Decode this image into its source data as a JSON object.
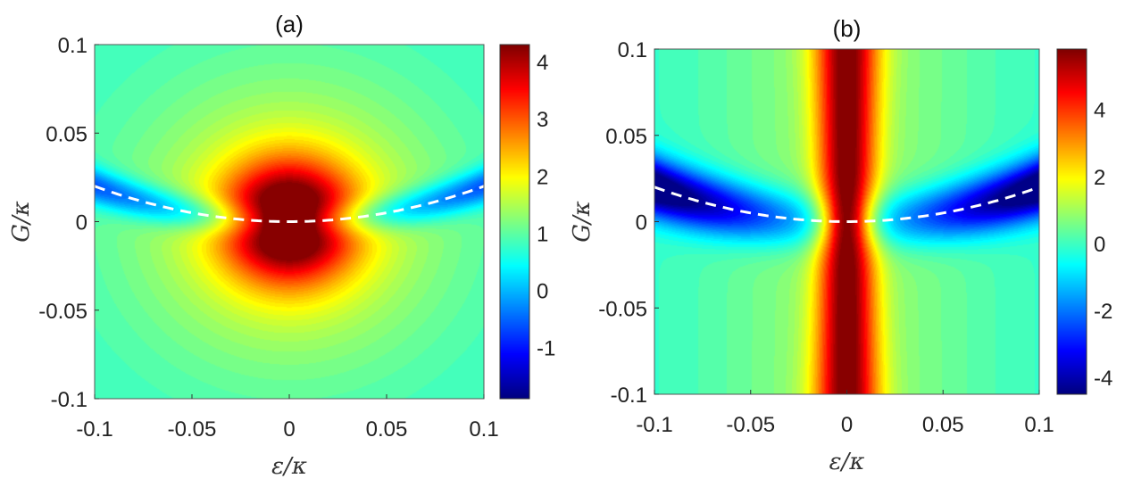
{
  "chart_data": [
    {
      "panel": "(a)",
      "type": "heatmap",
      "title": "(a)",
      "xlabel": "ε/κ",
      "ylabel": "G/κ",
      "xlim": [
        -0.1,
        0.1
      ],
      "ylim": [
        -0.1,
        0.1
      ],
      "x_ticks": [
        -0.1,
        -0.05,
        0,
        0.05,
        0.1
      ],
      "x_tick_labels": [
        "-0.1",
        "-0.05",
        "0",
        "0.05",
        "0.1"
      ],
      "y_ticks": [
        0.1,
        0.05,
        0,
        -0.05,
        -0.1
      ],
      "y_tick_labels": [
        "0.1",
        "0.05",
        "0",
        "-0.05",
        "-0.1"
      ],
      "colormap": "jet",
      "colorbar_range": [
        -1.9,
        4.3
      ],
      "colorbar_ticks": [
        4,
        3,
        2,
        1,
        0,
        -1
      ],
      "colorbar_tick_labels": [
        "4",
        "3",
        "2",
        "1",
        "0",
        "-1"
      ],
      "dashed_curve": {
        "description_type": "parabola",
        "x": [
          -0.1,
          0,
          0.1
        ],
        "y": [
          0.02,
          0,
          0.02
        ],
        "color": "#ffffff"
      },
      "features": {
        "background_level": 0.8,
        "peak_at_origin": 4.2,
        "valley_along_curve": -1.9
      }
    },
    {
      "panel": "(b)",
      "type": "heatmap",
      "title": "(b)",
      "xlabel": "ε/κ",
      "ylabel": "G/κ",
      "xlim": [
        -0.1,
        0.1
      ],
      "ylim": [
        -0.1,
        0.1
      ],
      "x_ticks": [
        -0.1,
        -0.05,
        0,
        0.05,
        0.1
      ],
      "x_tick_labels": [
        "-0.1",
        "-0.05",
        "0",
        "0.05",
        "0.1"
      ],
      "y_ticks": [
        0.1,
        0.05,
        0,
        -0.05,
        -0.1
      ],
      "y_tick_labels": [
        "0.1",
        "0.05",
        "0",
        "-0.05",
        "-0.1"
      ],
      "colormap": "jet",
      "colorbar_range": [
        -4.5,
        5.8
      ],
      "colorbar_ticks": [
        4,
        2,
        0,
        -2,
        -4
      ],
      "colorbar_tick_labels": [
        "4",
        "2",
        "0",
        "-2",
        "-4"
      ],
      "dashed_curve": {
        "description_type": "parabola",
        "x": [
          -0.1,
          0,
          0.1
        ],
        "y": [
          0.02,
          0,
          0.02
        ],
        "color": "#ffffff"
      },
      "features": {
        "peak_along_x0": 5.5,
        "valley_along_curve": -4.5
      }
    }
  ]
}
